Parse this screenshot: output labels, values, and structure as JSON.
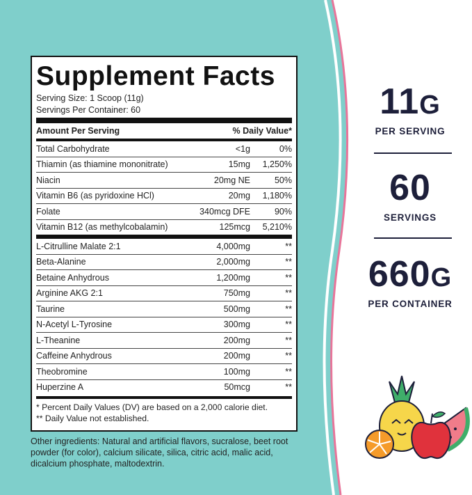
{
  "title": "Supplement Facts",
  "serving_size": "Serving Size: 1 Scoop (11g)",
  "servings_per_container": "Servings Per Container: 60",
  "header": {
    "amount": "Amount Per Serving",
    "dv": "% Daily Value*"
  },
  "vitamins": [
    {
      "name": "Total Carbohydrate",
      "amount": "<1g",
      "dv": "0%"
    },
    {
      "name": "Thiamin (as thiamine mononitrate)",
      "amount": "15mg",
      "dv": "1,250%"
    },
    {
      "name": "Niacin",
      "amount": "20mg NE",
      "dv": "50%"
    },
    {
      "name": "Vitamin B6 (as pyridoxine HCl)",
      "amount": "20mg",
      "dv": "1,180%"
    },
    {
      "name": "Folate",
      "amount": "340mcg DFE",
      "dv": "90%"
    },
    {
      "name": "Vitamin B12 (as methylcobalamin)",
      "amount": "125mcg",
      "dv": "5,210%"
    }
  ],
  "others": [
    {
      "name": "L-Citrulline Malate 2:1",
      "amount": "4,000mg",
      "dv": "**"
    },
    {
      "name": "Beta-Alanine",
      "amount": "2,000mg",
      "dv": "**"
    },
    {
      "name": "Betaine Anhydrous",
      "amount": "1,200mg",
      "dv": "**"
    },
    {
      "name": "Arginine AKG 2:1",
      "amount": "750mg",
      "dv": "**"
    },
    {
      "name": "Taurine",
      "amount": "500mg",
      "dv": "**"
    },
    {
      "name": "N-Acetyl L-Tyrosine",
      "amount": "300mg",
      "dv": "**"
    },
    {
      "name": "L-Theanine",
      "amount": "200mg",
      "dv": "**"
    },
    {
      "name": "Caffeine Anhydrous",
      "amount": "200mg",
      "dv": "**"
    },
    {
      "name": "Theobromine",
      "amount": "100mg",
      "dv": "**"
    },
    {
      "name": "Huperzine A",
      "amount": "50mcg",
      "dv": "**"
    }
  ],
  "footnote1": "* Percent Daily Values (DV) are based on a 2,000 calorie diet.",
  "footnote2": "** Daily Value not established.",
  "other_ingredients": "Other ingredients: Natural and artificial flavors, sucralose, beet root powder (for color), calcium silicate, silica, citric acid, malic acid,  dicalcium phosphate, maltodextrin.",
  "stats": [
    {
      "value": "11",
      "unit": "G",
      "label": "PER SERVING"
    },
    {
      "value": "60",
      "unit": "",
      "label": "SERVINGS"
    },
    {
      "value": "660",
      "unit": "G",
      "label": "PER CONTAINER"
    }
  ],
  "colors": {
    "teal": "#7fcfcb",
    "pink": "#e8759a",
    "navy": "#1d1f3a"
  }
}
